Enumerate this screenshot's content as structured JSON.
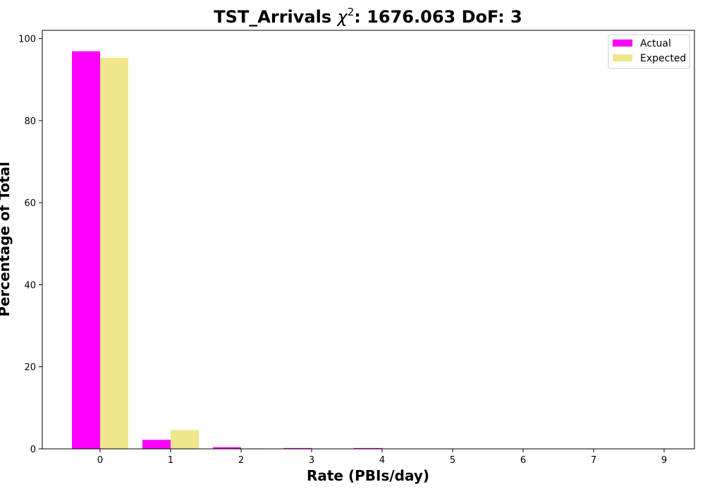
{
  "chart_data": {
    "type": "bar",
    "title": {
      "prefix": "TST_Arrivals ",
      "symbol": "χ",
      "superscript": "2",
      "suffix": ": 1676.063 DoF: 3"
    },
    "xlabel": "Rate (PBIs/day)",
    "ylabel": "Percentage of Total",
    "categories": [
      "0",
      "1",
      "2",
      "3",
      "4",
      "5",
      "6",
      "7",
      "9"
    ],
    "y_ticks": [
      "0",
      "20",
      "40",
      "60",
      "80",
      "100"
    ],
    "ylim": [
      0,
      102
    ],
    "grid": false,
    "legend_position": "top-right",
    "series": [
      {
        "name": "Actual",
        "color": "#ff00ff",
        "values": [
          96.9,
          2.2,
          0.4,
          0.2,
          0.2,
          0,
          0,
          0,
          0
        ]
      },
      {
        "name": "Expected",
        "color": "#f0e68c",
        "values": [
          95.3,
          4.6,
          0.1,
          0.0,
          0.0,
          0,
          0,
          0,
          0
        ]
      }
    ]
  }
}
